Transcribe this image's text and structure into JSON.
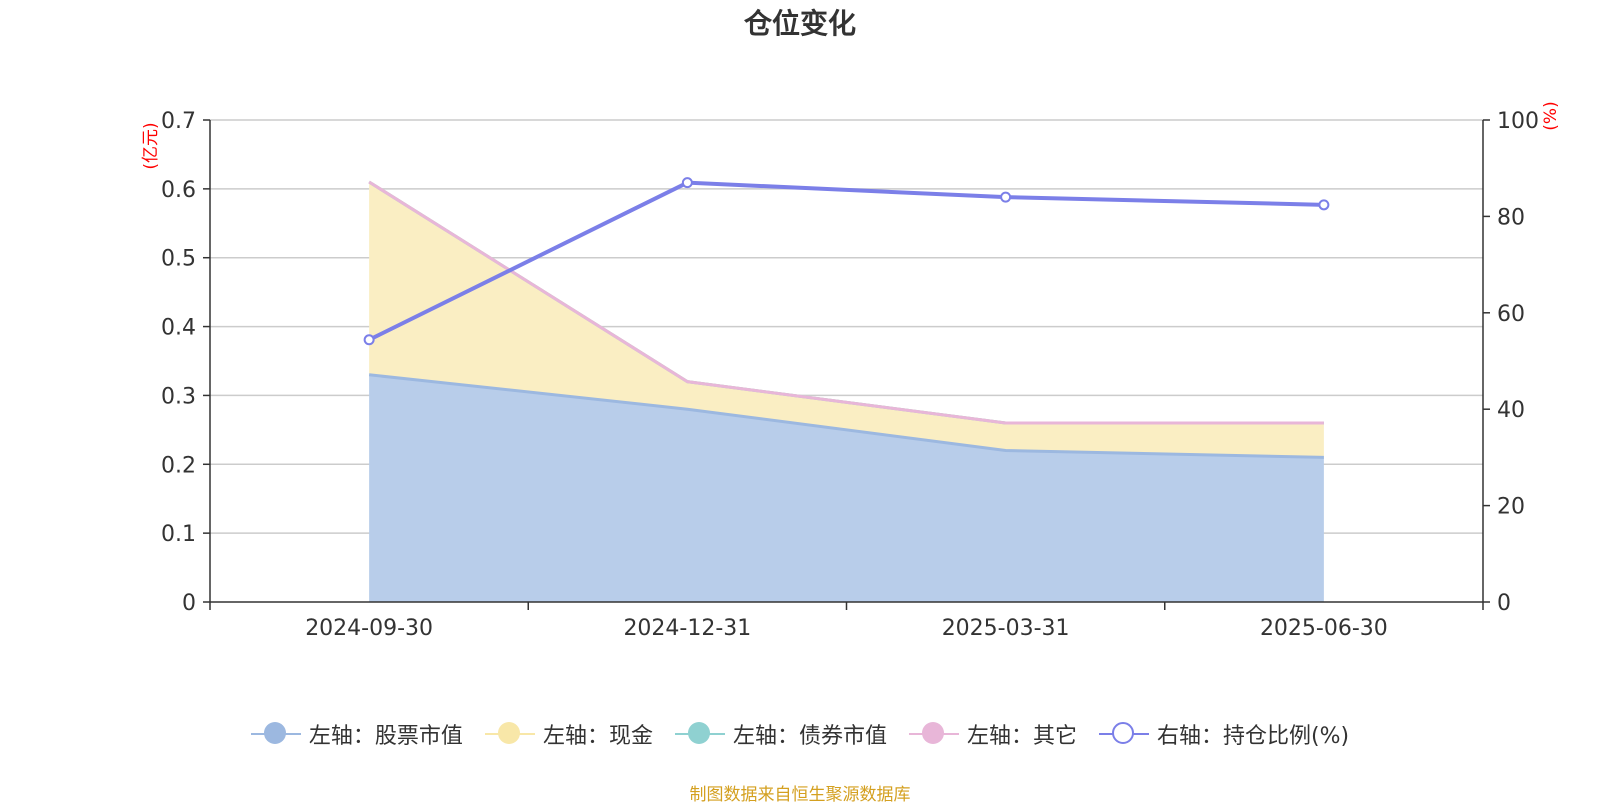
{
  "title": "仓位变化",
  "footer": "制图数据来自恒生聚源数据库",
  "chart_data": {
    "type": "area",
    "categories": [
      "2024-09-30",
      "2024-12-31",
      "2025-03-31",
      "2025-06-30"
    ],
    "left_axis": {
      "unit": "(亿元)",
      "ylim": [
        0,
        0.7
      ],
      "ticks": [
        "0",
        "0.1",
        "0.2",
        "0.3",
        "0.4",
        "0.5",
        "0.6",
        "0.7"
      ]
    },
    "right_axis": {
      "unit": "(%)",
      "ylim": [
        0,
        100
      ],
      "ticks": [
        "0",
        "20",
        "40",
        "60",
        "80",
        "100"
      ]
    },
    "series": [
      {
        "name": "左轴：股票市值",
        "axis": "left",
        "type": "area",
        "color": "#9cb8e0",
        "fill": "#b8cdea",
        "values": [
          0.33,
          0.28,
          0.22,
          0.21
        ]
      },
      {
        "name": "左轴：现金",
        "axis": "left",
        "type": "area",
        "color": "#f8e7a8",
        "fill": "#faeec3",
        "values": [
          0.28,
          0.04,
          0.04,
          0.05
        ]
      },
      {
        "name": "左轴：债券市值",
        "axis": "left",
        "type": "area",
        "color": "#8fd1d1",
        "fill": "#8fd1d1",
        "values": [
          0,
          0,
          0,
          0
        ]
      },
      {
        "name": "左轴：其它",
        "axis": "left",
        "type": "area",
        "color": "#e8b6d8",
        "fill": "#e8b6d8",
        "values": [
          0,
          0,
          0,
          0
        ]
      },
      {
        "name": "右轴：持仓比例(%)",
        "axis": "right",
        "type": "line",
        "color": "#7b7fe8",
        "values": [
          54.4,
          87.0,
          84.0,
          82.4
        ]
      }
    ],
    "grid": true,
    "legend_position": "bottom"
  }
}
